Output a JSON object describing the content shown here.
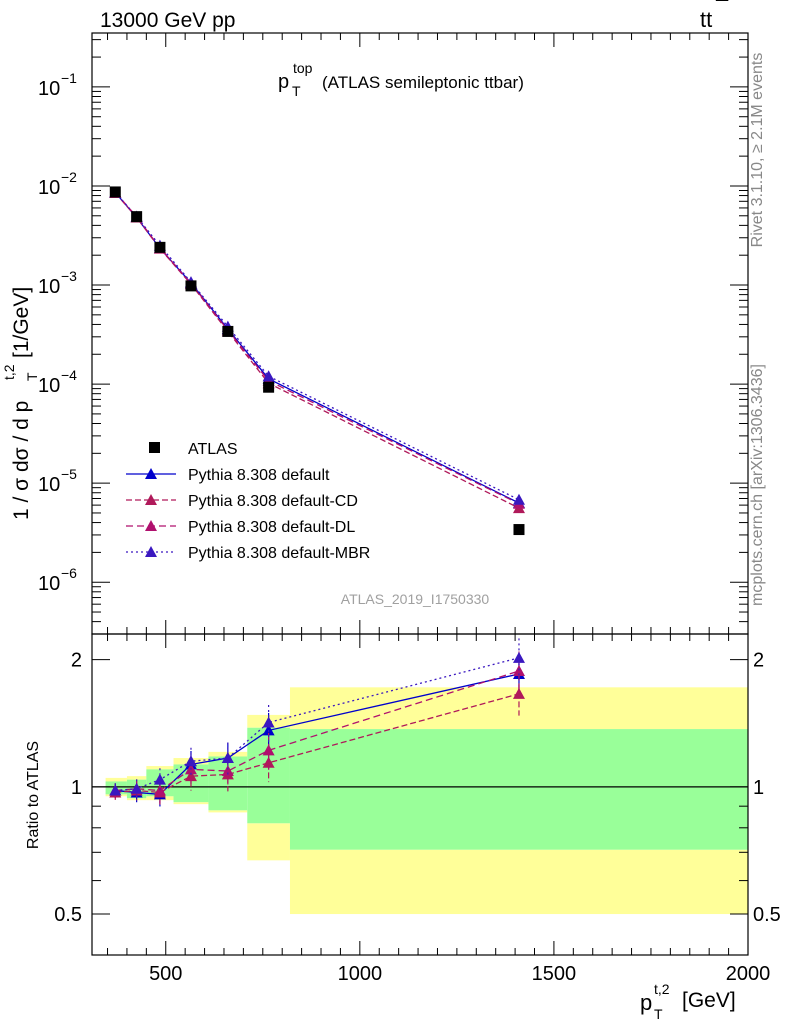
{
  "header": {
    "left": "13000 GeV pp",
    "right_main": "tt",
    "right_bar": "¯"
  },
  "side_labels": {
    "rivet": "Rivet 3.1.10, ≥ 2.1M events",
    "mcplots": "mcplots.cern.ch [arXiv:1306.3436]"
  },
  "title": {
    "main": "p",
    "sup": "top",
    "sub": "T",
    "rest": "(ATLAS semileptonic ttbar)"
  },
  "watermark": "ATLAS_2019_I1750330",
  "main_ylabel": {
    "part1": "1 / σ dσ / d p",
    "sup": "t,2",
    "sub": "T",
    "part2": "[1/GeV]"
  },
  "ratio_ylabel": "Ratio to ATLAS",
  "xlabel": {
    "p": "p",
    "sup": "t,2",
    "sub": "T",
    "unit": "[GeV]"
  },
  "colors": {
    "data": "#000000",
    "default": "#0000cc",
    "cd": "#b0195a",
    "dl": "#b0106e",
    "mbr": "#3a18c0",
    "band_outer": "#ffff99",
    "band_inner": "#99ff99"
  },
  "chart_data": {
    "type": "line",
    "x_range": [
      310,
      2000
    ],
    "y_range_main": [
      3e-07,
      0.35
    ],
    "y_scale_main": "log",
    "y_range_ratio": [
      0.4,
      2.3
    ],
    "y_scale_ratio": "log",
    "x_ticks": [
      {
        "v": 500,
        "label": "500"
      },
      {
        "v": 1000,
        "label": "1000"
      },
      {
        "v": 1500,
        "label": "1500"
      },
      {
        "v": 2000,
        "label": "2000"
      }
    ],
    "main_y_ticks": [
      {
        "v": 1e-06,
        "base": "10",
        "exp": "−6"
      },
      {
        "v": 1e-05,
        "base": "10",
        "exp": "−5"
      },
      {
        "v": 0.0001,
        "base": "10",
        "exp": "−4"
      },
      {
        "v": 0.001,
        "base": "10",
        "exp": "−3"
      },
      {
        "v": 0.01,
        "base": "10",
        "exp": "−2"
      },
      {
        "v": 0.1,
        "base": "10",
        "exp": "−1"
      }
    ],
    "ratio_y_ticks": [
      {
        "v": 0.5,
        "label": "0.5"
      },
      {
        "v": 1,
        "label": "1"
      },
      {
        "v": 2,
        "label": "2"
      }
    ],
    "x": [
      370,
      425,
      485,
      565,
      660,
      765,
      1410
    ],
    "bins": [
      [
        345,
        400,
        1.03,
        0.96,
        1.05,
        0.95
      ],
      [
        400,
        450,
        1.04,
        0.94,
        1.06,
        0.93
      ],
      [
        450,
        520,
        1.1,
        0.95,
        1.12,
        0.93
      ],
      [
        520,
        610,
        1.13,
        0.92,
        1.17,
        0.91
      ],
      [
        610,
        710,
        1.18,
        0.88,
        1.21,
        0.87
      ],
      [
        710,
        820,
        1.38,
        0.82,
        1.48,
        0.67
      ],
      [
        820,
        2000,
        1.37,
        0.71,
        1.72,
        0.5
      ]
    ],
    "legend": [
      "ATLAS",
      "Pythia 8.308 default",
      "Pythia 8.308 default-CD",
      "Pythia 8.308 default-DL",
      "Pythia 8.308 default-MBR"
    ],
    "data": {
      "name": "ATLAS",
      "values": [
        0.0087,
        0.0049,
        0.0024,
        0.00098,
        0.00034,
        9.3e-05,
        3.4e-06
      ]
    },
    "series": [
      {
        "name": "Pythia 8.308 default",
        "values": [
          0.0086,
          0.0048,
          0.00235,
          0.00105,
          0.00036,
          0.000113,
          6.3e-06
        ],
        "ratio": [
          0.98,
          0.97,
          0.96,
          1.13,
          1.17,
          1.36,
          1.85
        ]
      },
      {
        "name": "Pythia 8.308 default-CD",
        "values": [
          0.0085,
          0.0048,
          0.00233,
          0.00102,
          0.00034,
          0.000102,
          5.6e-06
        ],
        "ratio": [
          0.97,
          0.98,
          0.97,
          1.06,
          1.07,
          1.14,
          1.66
        ]
      },
      {
        "name": "Pythia 8.308 default-DL",
        "values": [
          0.0086,
          0.0049,
          0.00236,
          0.00104,
          0.00035,
          0.000108,
          6.2e-06
        ],
        "ratio": [
          0.98,
          0.99,
          0.98,
          1.1,
          1.09,
          1.22,
          1.88
        ]
      },
      {
        "name": "Pythia 8.308 default-MBR",
        "values": [
          0.0086,
          0.0049,
          0.0025,
          0.00107,
          0.00038,
          0.00012,
          6.8e-06
        ],
        "ratio": [
          0.98,
          0.99,
          1.04,
          1.15,
          1.17,
          1.42,
          2.02
        ]
      }
    ]
  }
}
